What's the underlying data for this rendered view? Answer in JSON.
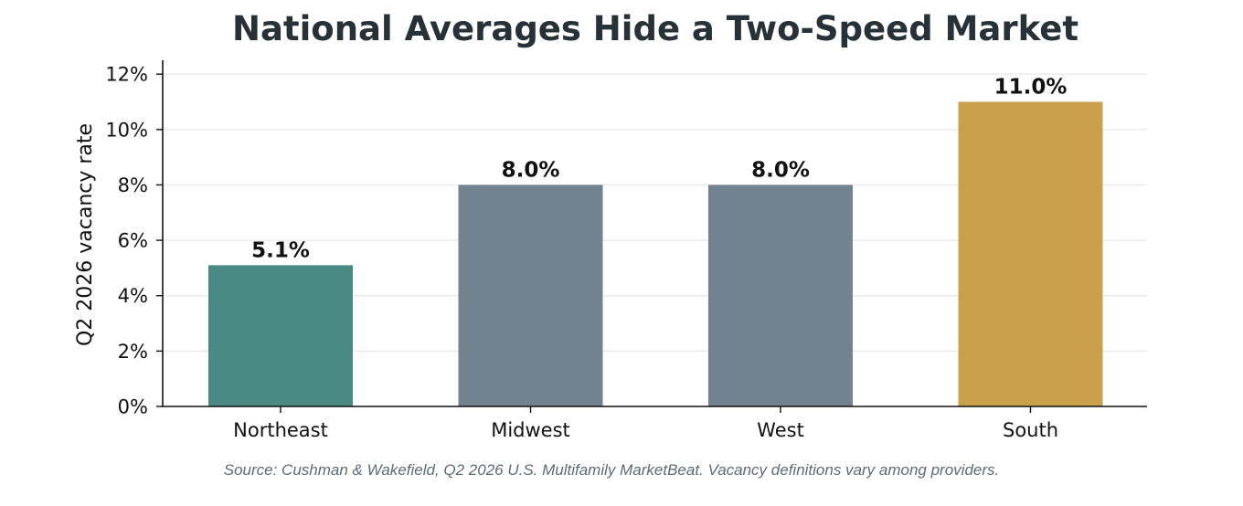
{
  "chart_data": {
    "type": "bar",
    "title": "National Averages Hide a Two-Speed Market",
    "xlabel": "",
    "ylabel": "Q2 2026 vacancy rate",
    "categories": [
      "Northeast",
      "Midwest",
      "West",
      "South"
    ],
    "values": [
      5.1,
      8.0,
      8.0,
      11.0
    ],
    "value_labels": [
      "5.1%",
      "8.0%",
      "8.0%",
      "11.0%"
    ],
    "bar_colors": [
      "#4a8a84",
      "#72828e",
      "#72828e",
      "#c9a04c"
    ],
    "ylim": [
      0,
      12.5
    ],
    "yticks": [
      0,
      2,
      4,
      6,
      8,
      10,
      12
    ],
    "ytick_labels": [
      "0%",
      "2%",
      "4%",
      "6%",
      "8%",
      "10%",
      "12%"
    ],
    "grid": "horizontal",
    "legend": "none"
  },
  "source_note": "Source: Cushman & Wakefield, Q2 2026 U.S. Multifamily MarketBeat. Vacancy definitions vary among providers."
}
